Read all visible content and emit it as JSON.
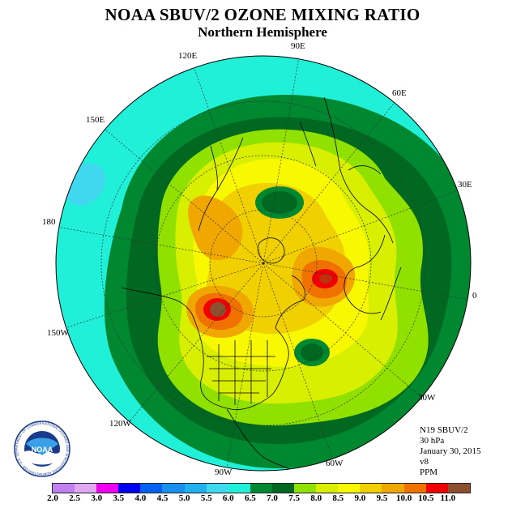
{
  "header": {
    "title": "NOAA SBUV/2 OZONE MIXING RATIO",
    "subtitle": "Northern Hemisphere"
  },
  "map": {
    "projection": "north-polar-stereographic",
    "longitude_labels": [
      "90E",
      "60E",
      "30E",
      "0",
      "30W",
      "60W",
      "90W",
      "120W",
      "150W",
      "180",
      "150E",
      "120E"
    ]
  },
  "info": {
    "instrument": "N19 SBUV/2",
    "pressure_level": "30 hPa",
    "date": "January 30, 2015",
    "version": "v8",
    "units": "PPM"
  },
  "colorbar": {
    "ticks": [
      "2.0",
      "2.5",
      "3.0",
      "3.5",
      "4.0",
      "4.5",
      "5.0",
      "5.5",
      "6.0",
      "6.5",
      "7.0",
      "7.5",
      "8.0",
      "8.5",
      "9.0",
      "9.5",
      "10.0",
      "10.5",
      "11.0"
    ],
    "colors": [
      "#c080f0",
      "#e0a8f0",
      "#f000f0",
      "#0000f0",
      "#0060f0",
      "#1890f0",
      "#20b0f0",
      "#40d8f0",
      "#20f0d8",
      "#008830",
      "#006820",
      "#90e000",
      "#d8f000",
      "#f8f800",
      "#f0d000",
      "#f0a800",
      "#f07000",
      "#f00000",
      "#8c5030"
    ]
  },
  "logo": {
    "text": "NOAA",
    "ring_text": "NATIONAL OCEANIC AND ATMOSPHERIC ADMINISTRATION · U.S. DEPARTMENT OF COMMERCE"
  }
}
